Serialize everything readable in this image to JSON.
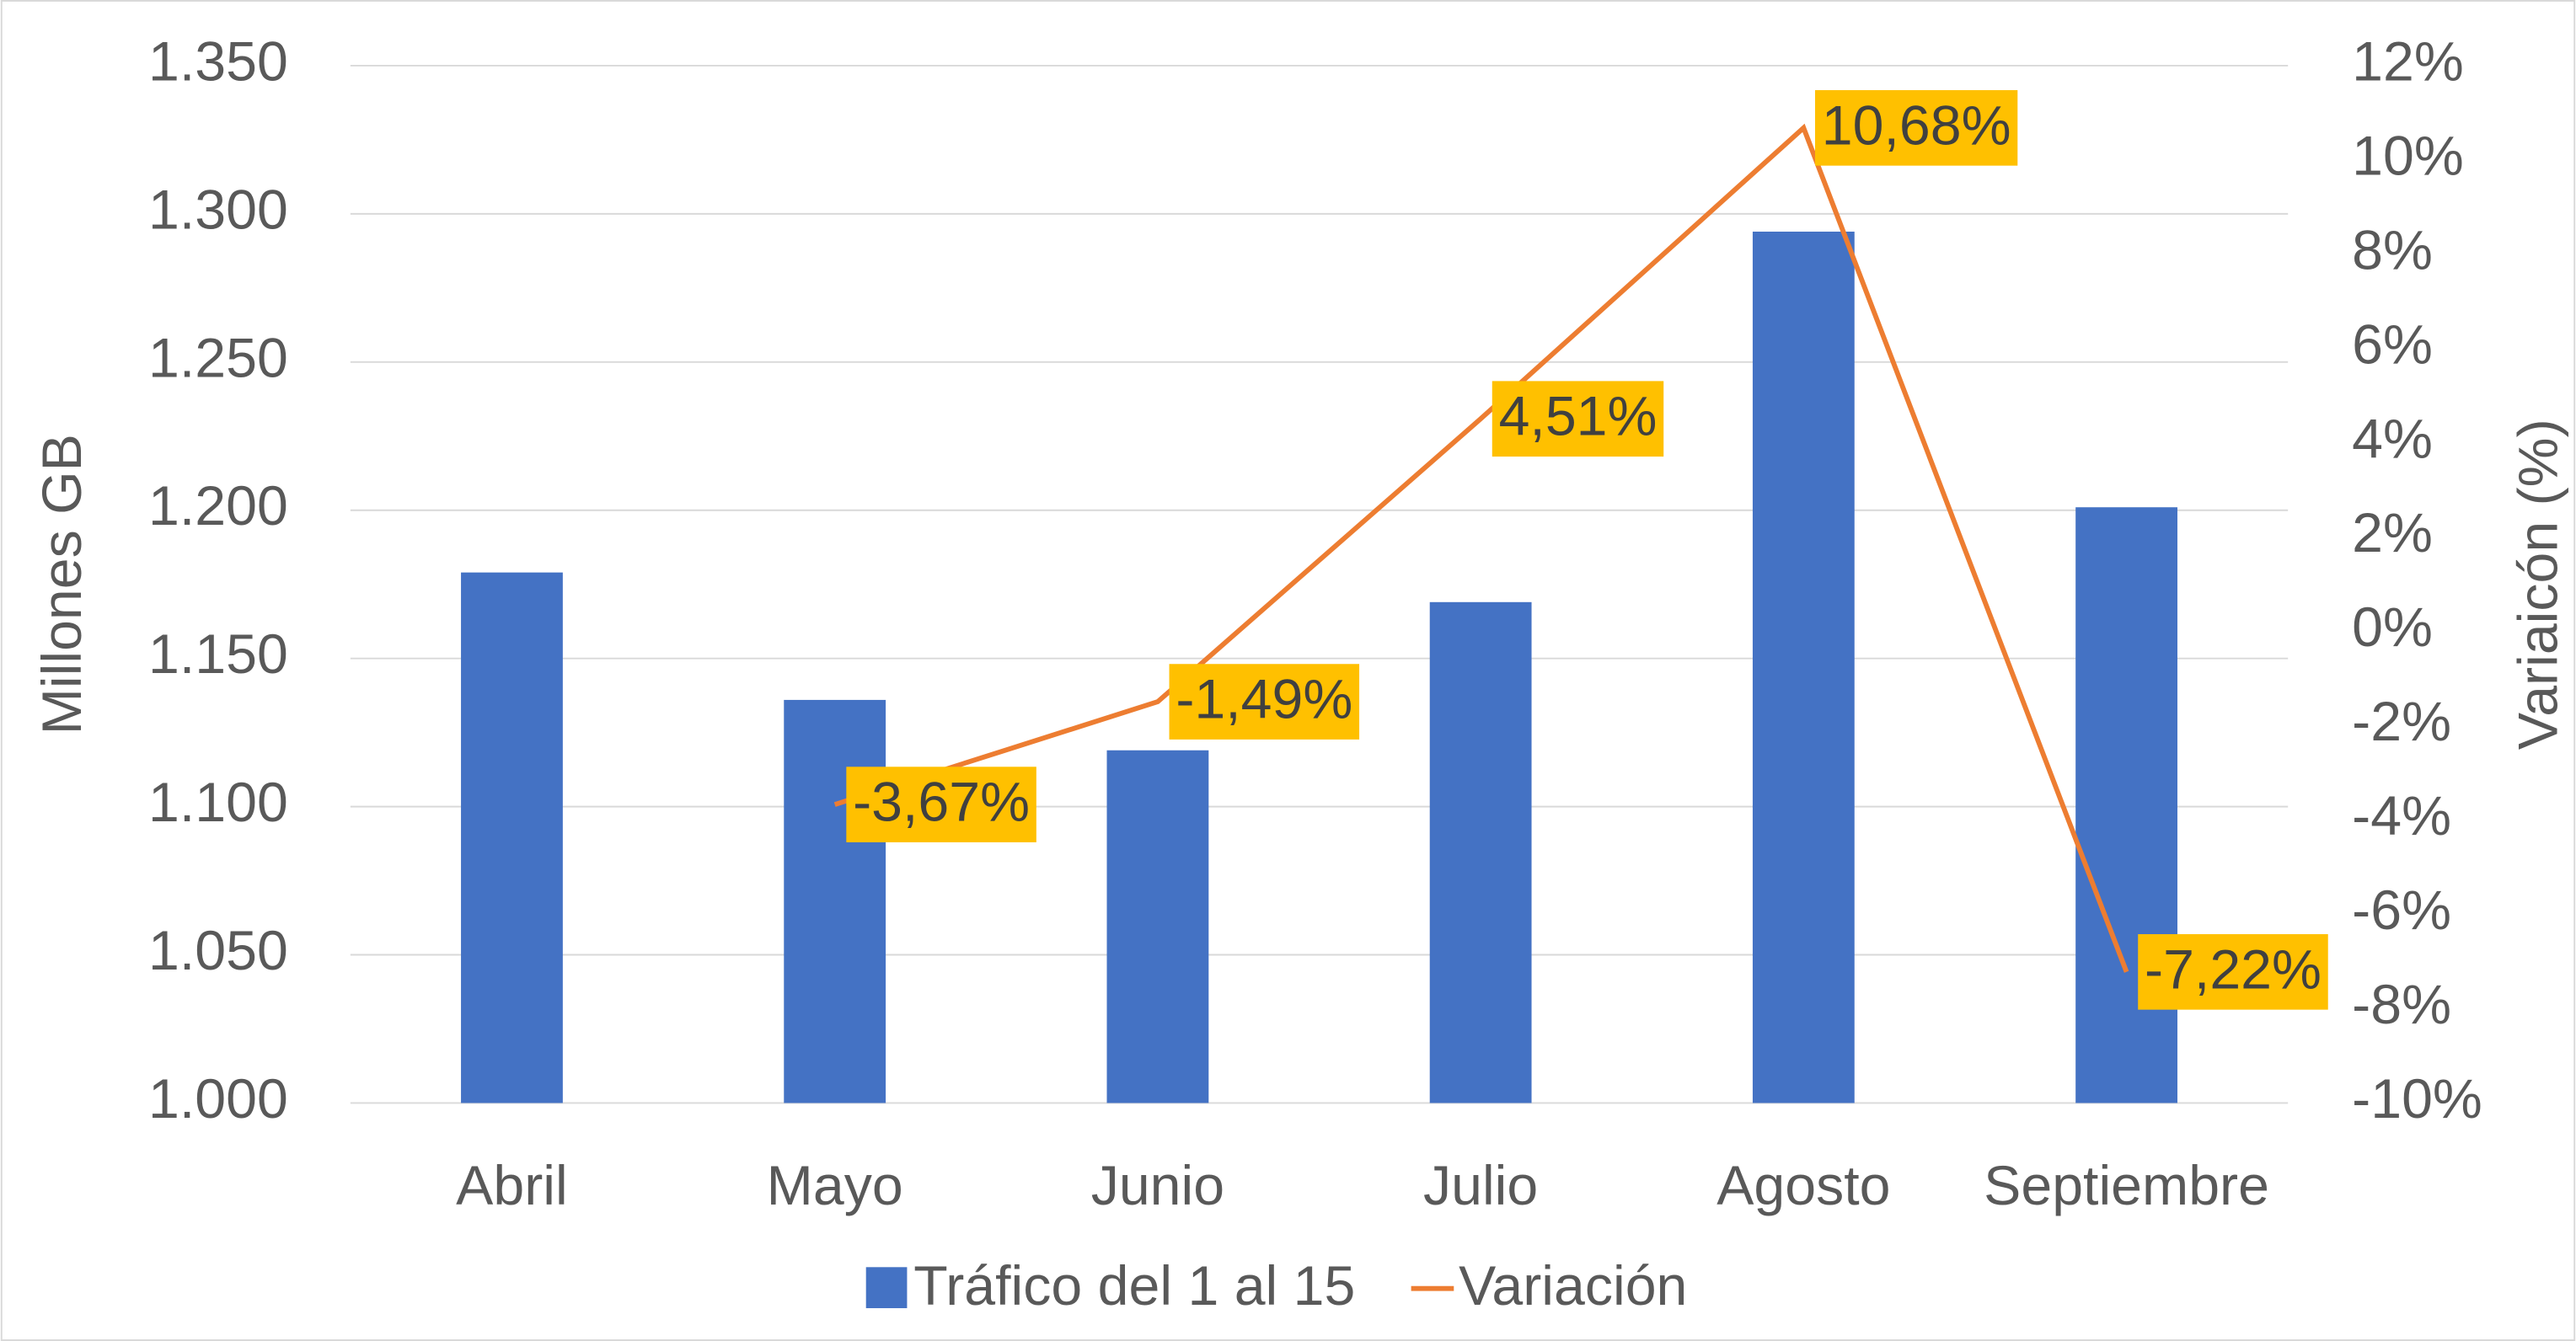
{
  "chart_data": {
    "type": "bar",
    "categories": [
      "Abril",
      "Mayo",
      "Junio",
      "Julio",
      "Agosto",
      "Septiembre"
    ],
    "series": [
      {
        "name": "Tráfico del 1 al 15",
        "color": "#4472c4",
        "values": [
          1179,
          1136,
          1119,
          1169,
          1294,
          1201
        ]
      },
      {
        "name": "Variación",
        "type": "line",
        "axis": "y2",
        "color": "#ed7d31",
        "values": [
          null,
          -3.67,
          -1.49,
          4.51,
          10.68,
          -7.22
        ],
        "value_labels": [
          null,
          "-3,67%",
          "-1,49%",
          "4,51%",
          "10,68%",
          "-7,22%"
        ],
        "label_color": "#ffc000"
      }
    ],
    "ylabel": "Millones GB",
    "y2label": "Variaicón (%)",
    "ylim": [
      1000,
      1350
    ],
    "yticks": [
      {
        "value": 1000,
        "label": "1.000"
      },
      {
        "value": 1050,
        "label": "1.050"
      },
      {
        "value": 1100,
        "label": "1.100"
      },
      {
        "value": 1150,
        "label": "1.150"
      },
      {
        "value": 1200,
        "label": "1.200"
      },
      {
        "value": 1250,
        "label": "1.250"
      },
      {
        "value": 1300,
        "label": "1.300"
      },
      {
        "value": 1350,
        "label": "1.350"
      }
    ],
    "y2lim": [
      -10,
      12
    ],
    "y2ticks": [
      {
        "value": -10,
        "label": "-10%"
      },
      {
        "value": -8,
        "label": "-8%"
      },
      {
        "value": -6,
        "label": "-6%"
      },
      {
        "value": -4,
        "label": "-4%"
      },
      {
        "value": -2,
        "label": "-2%"
      },
      {
        "value": 0,
        "label": "0%"
      },
      {
        "value": 2,
        "label": "2%"
      },
      {
        "value": 4,
        "label": "4%"
      },
      {
        "value": 6,
        "label": "6%"
      },
      {
        "value": 8,
        "label": "8%"
      },
      {
        "value": 10,
        "label": "10%"
      },
      {
        "value": 12,
        "label": "12%"
      }
    ],
    "grid": true,
    "legend": "bottom"
  }
}
